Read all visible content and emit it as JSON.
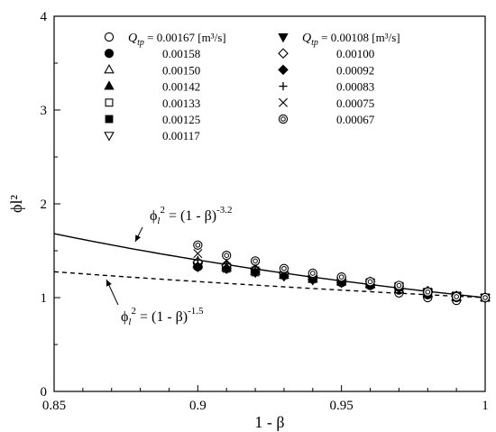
{
  "chart_data": {
    "type": "scatter",
    "xlabel": "1 - β",
    "ylabel": "ϕl²",
    "xlim": [
      0.85,
      1.0
    ],
    "ylim": [
      0,
      4
    ],
    "x_ticks": [
      "0.85",
      "0.9",
      "0.95",
      "1"
    ],
    "y_ticks": [
      "0",
      "1",
      "2",
      "3",
      "4"
    ],
    "grid": false,
    "legend": {
      "placement": "top",
      "header_symbol": "Q",
      "header_subscript": "tp",
      "header_equals": "=",
      "unit": "[m³/s]"
    },
    "x": [
      0.9,
      0.91,
      0.92,
      0.93,
      0.94,
      0.95,
      0.96,
      0.97,
      0.98,
      0.99,
      1.0
    ],
    "series": [
      {
        "name": "0.00167",
        "marker": "circle-open",
        "values": [
          1.33,
          1.31,
          1.28,
          1.25,
          1.2,
          1.16,
          1.13,
          1.05,
          1.0,
          0.97,
          1.0
        ]
      },
      {
        "name": "0.00158",
        "marker": "circle-filled",
        "values": [
          1.34,
          1.32,
          1.28,
          1.25,
          1.2,
          1.17,
          1.14,
          1.08,
          1.03,
          1.0,
          1.0
        ]
      },
      {
        "name": "0.00150",
        "marker": "triangle-up-open",
        "values": [
          1.35,
          1.32,
          1.28,
          1.24,
          1.2,
          1.17,
          1.14,
          1.09,
          1.04,
          1.0,
          1.0
        ]
      },
      {
        "name": "0.00142",
        "marker": "triangle-up-filled",
        "values": [
          1.36,
          1.32,
          1.28,
          1.24,
          1.2,
          1.17,
          1.15,
          1.09,
          1.05,
          1.01,
          1.0
        ]
      },
      {
        "name": "0.00133",
        "marker": "square-open",
        "values": [
          1.34,
          1.31,
          1.27,
          1.24,
          1.2,
          1.17,
          1.14,
          1.09,
          1.05,
          1.01,
          1.0
        ]
      },
      {
        "name": "0.00125",
        "marker": "square-filled",
        "values": [
          1.35,
          1.33,
          1.29,
          1.25,
          1.2,
          1.17,
          1.15,
          1.11,
          1.06,
          1.02,
          1.0
        ]
      },
      {
        "name": "0.00117",
        "marker": "triangle-down-open",
        "values": [
          1.33,
          1.31,
          1.27,
          1.23,
          1.19,
          1.16,
          1.14,
          1.1,
          1.05,
          1.01,
          1.0
        ]
      },
      {
        "name": "0.00108",
        "marker": "triangle-down-filled",
        "values": [
          1.34,
          1.32,
          1.28,
          1.24,
          1.2,
          1.18,
          1.16,
          1.12,
          1.06,
          1.02,
          1.0
        ]
      },
      {
        "name": "0.00100",
        "marker": "diamond-open",
        "values": [
          1.38,
          1.34,
          1.3,
          1.26,
          1.22,
          1.19,
          1.17,
          1.12,
          1.07,
          1.02,
          1.0
        ]
      },
      {
        "name": "0.00092",
        "marker": "diamond-filled",
        "values": [
          1.33,
          1.31,
          1.27,
          1.23,
          1.19,
          1.16,
          1.14,
          1.1,
          1.05,
          1.01,
          1.0
        ]
      },
      {
        "name": "0.00083",
        "marker": "plus",
        "values": [
          1.4,
          1.36,
          1.3,
          1.27,
          1.22,
          1.18,
          1.16,
          1.12,
          1.06,
          1.02,
          1.0
        ]
      },
      {
        "name": "0.00075",
        "marker": "x",
        "values": [
          1.47,
          1.4,
          1.34,
          1.28,
          1.23,
          1.19,
          1.16,
          1.12,
          1.06,
          1.02,
          1.0
        ]
      },
      {
        "name": "0.00067",
        "marker": "circle-dot",
        "values": [
          1.56,
          1.45,
          1.39,
          1.31,
          1.26,
          1.22,
          1.17,
          1.13,
          1.06,
          1.01,
          1.0
        ]
      }
    ],
    "curves": [
      {
        "name": "ϕl² = (1 - β)^-3.2",
        "style": "solid",
        "exponent": -3.2,
        "label_parts": [
          "ϕ",
          "l",
          "2",
          " = (1 - β)",
          "-3.2"
        ]
      },
      {
        "name": "ϕl² = (1 - β)^-1.5",
        "style": "dashed",
        "exponent": -1.5,
        "label_parts": [
          "ϕ",
          "l",
          "2",
          " = (1 - β)",
          "-1.5"
        ]
      }
    ]
  }
}
